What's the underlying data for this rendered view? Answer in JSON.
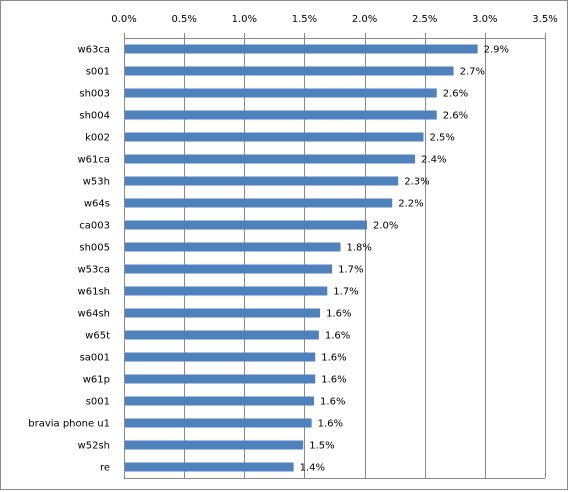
{
  "chart_data": {
    "type": "bar",
    "orientation": "horizontal",
    "categories": [
      "w63ca",
      "s001",
      "sh003",
      "sh004",
      "k002",
      "w61ca",
      "w53h",
      "w64s",
      "ca003",
      "sh005",
      "w53ca",
      "w61sh",
      "w64sh",
      "w65t",
      "sa001",
      "w61p",
      "s001",
      "bravia phone u1",
      "w52sh",
      "re"
    ],
    "values": [
      2.94,
      2.74,
      2.6,
      2.6,
      2.49,
      2.42,
      2.28,
      2.23,
      2.02,
      1.8,
      1.73,
      1.69,
      1.63,
      1.62,
      1.59,
      1.59,
      1.58,
      1.56,
      1.49,
      1.41
    ],
    "data_labels": [
      "2.9%",
      "2.7%",
      "2.6%",
      "2.6%",
      "2.5%",
      "2.4%",
      "2.3%",
      "2.2%",
      "2.0%",
      "1.8%",
      "1.7%",
      "1.7%",
      "1.6%",
      "1.6%",
      "1.6%",
      "1.6%",
      "1.6%",
      "1.6%",
      "1.5%",
      "1.4%"
    ],
    "xlim": [
      0,
      3.5
    ],
    "x_ticks": [
      0,
      0.5,
      1.0,
      1.5,
      2.0,
      2.5,
      3.0,
      3.5
    ],
    "x_tick_labels": [
      "0.0%",
      "0.5%",
      "1.0%",
      "1.5%",
      "2.0%",
      "2.5%",
      "3.0%",
      "3.5%"
    ],
    "x_axis_position": "top",
    "grid": "vertical",
    "legend": "none",
    "title": "",
    "xlabel": "",
    "ylabel": "",
    "bar_color": "#4f81bd",
    "grid_color": "#8a8a8a"
  }
}
